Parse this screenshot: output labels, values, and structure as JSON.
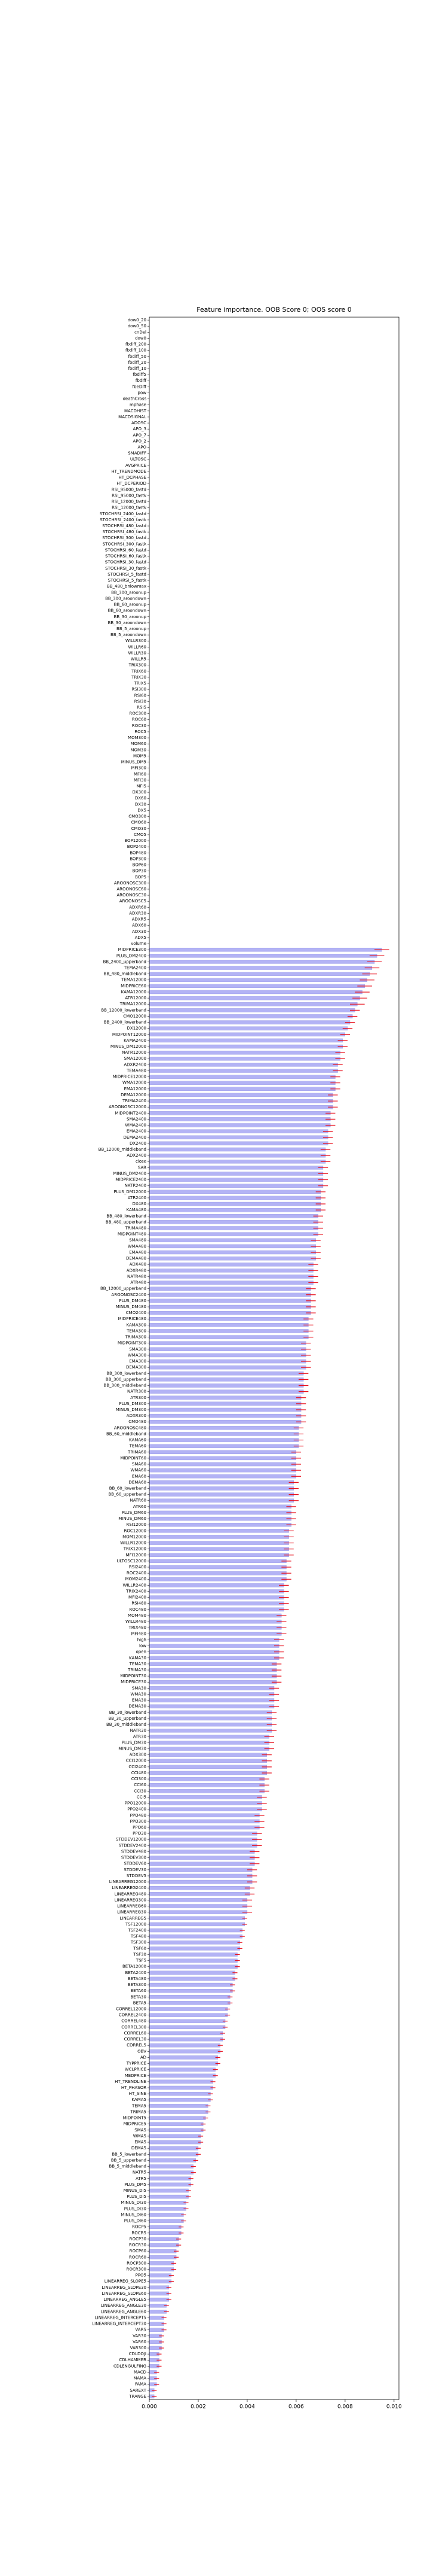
{
  "chart_data": {
    "type": "barh",
    "title": "Feature importance. OOB Score 0; OOS score 0",
    "categories": [
      "dow0_20",
      "dow0_50",
      "cnDel",
      "dow0",
      "fbdiff_200",
      "fbdiff_100",
      "fbdiff_50",
      "fbdiff_20",
      "fbdiff_10",
      "fbdiff5",
      "fbdiff",
      "fbeDiff",
      "pow",
      "deathCross",
      "mphase",
      "MACDHIST",
      "MACDSIGNAL",
      "ADOSC",
      "APO_3",
      "APO_7",
      "APO_2",
      "APO",
      "SMADIFF",
      "ULTOSC",
      "AVGPRICE",
      "HT_TRENDMODE",
      "HT_DCPHASE",
      "HT_DCPERIOD",
      "RSI_95000_fastd",
      "RSI_95000_fastk",
      "RSI_12000_fastd",
      "RSI_12000_fastk",
      "STOCHRSI_2400_fastd",
      "STOCHRSI_2400_fastk",
      "STOCHRSI_480_fastd",
      "STOCHRSI_480_fastk",
      "STOCHRSI_300_fastd",
      "STOCHRSI_300_fastk",
      "STOCHRSI_60_fastd",
      "STOCHRSI_60_fastk",
      "STOCHRSI_30_fastd",
      "STOCHRSI_30_fastk",
      "STOCHRSI_5_fastd",
      "STOCHRSI_5_fastk",
      "BB_480_bnlowmax",
      "BB_300_aroonup",
      "BB_300_aroondown",
      "BB_60_aroonup",
      "BB_60_aroondown",
      "BB_30_aroonup",
      "BB_30_aroondown",
      "BB_5_aroonup",
      "BB_5_aroondown",
      "WILLR300",
      "WILLR60",
      "WILLR30",
      "WILLR5",
      "TRIX300",
      "TRIX60",
      "TRIX30",
      "TRIX5",
      "RSI300",
      "RSI60",
      "RSI30",
      "RSI5",
      "ROC300",
      "ROC60",
      "ROC30",
      "ROC5",
      "MOM300",
      "MOM60",
      "MOM30",
      "MOM5",
      "MINUS_DM5",
      "MFI300",
      "MFI60",
      "MFI30",
      "MFI5",
      "DX300",
      "DX60",
      "DX30",
      "DX5",
      "CMO300",
      "CMO60",
      "CMO30",
      "CMO5",
      "BOP12000",
      "BOP2400",
      "BOP480",
      "BOP300",
      "BOP60",
      "BOP30",
      "BOP5",
      "AROONOSC300",
      "AROONOSC60",
      "AROONOSC30",
      "AROONOSC5",
      "ADXR60",
      "ADXR30",
      "ADXR5",
      "ADX60",
      "ADX30",
      "ADX5",
      "volume",
      "MIDPRICE300",
      "PLUS_DM2400",
      "BB_2400_upperband",
      "TEMA2400",
      "BB_480_middleband",
      "TEMA12000",
      "MIDPRICE60",
      "KAMA12000",
      "ATR12000",
      "TRIMA12000",
      "BB_12000_lowerband",
      "CMO12000",
      "BB_2400_lowerband",
      "DX12000",
      "MIDPOINT12000",
      "KAMA2400",
      "MINUS_DM12000",
      "NATR12000",
      "SMA12000",
      "ADXR2400",
      "TEMA480",
      "MIDPRICE12000",
      "WMA12000",
      "EMA12000",
      "DEMA12000",
      "TRIMA2400",
      "AROONOSC12000",
      "MIDPOINT2400",
      "SMA2400",
      "WMA2400",
      "EMA2400",
      "DEMA2400",
      "DX2400",
      "BB_12000_middleband",
      "ADX2400",
      "close",
      "SAR",
      "MINUS_DM2400",
      "MIDPRICE2400",
      "NATR2400",
      "PLUS_DM12000",
      "ATR2400",
      "DX480",
      "KAMA480",
      "BB_480_lowerband",
      "BB_480_upperband",
      "TRIMA480",
      "MIDPOINT480",
      "SMA480",
      "WMA480",
      "EMA480",
      "DEMA480",
      "ADX480",
      "ADXR480",
      "NATR480",
      "ATR480",
      "BB_12000_upperband",
      "AROONOSC2400",
      "PLUS_DM480",
      "MINUS_DM480",
      "CMO2400",
      "MIDPRICE480",
      "KAMA300",
      "TEMA300",
      "TRIMA300",
      "MIDPOINT300",
      "SMA300",
      "WMA300",
      "EMA300",
      "DEMA300",
      "BB_300_lowerband",
      "BB_300_upperband",
      "BB_300_middleband",
      "NATR300",
      "ATR300",
      "PLUS_DM300",
      "MINUS_DM300",
      "ADXR300",
      "CMO480",
      "AROONOSC480",
      "BB_60_middleband",
      "KAMA60",
      "TEMA60",
      "TRIMA60",
      "MIDPOINT60",
      "SMA60",
      "WMA60",
      "EMA60",
      "DEMA60",
      "BB_60_lowerband",
      "BB_60_upperband",
      "NATR60",
      "ATR60",
      "PLUS_DM60",
      "MINUS_DM60",
      "RSI12000",
      "ROC12000",
      "MOM12000",
      "WILLR12000",
      "TRIX12000",
      "MFI12000",
      "ULTOSC12000",
      "RSI2400",
      "ROC2400",
      "MOM2400",
      "WILLR2400",
      "TRIX2400",
      "MFI2400",
      "RSI480",
      "ROC480",
      "MOM480",
      "WILLR480",
      "TRIX480",
      "MFI480",
      "high",
      "low",
      "open",
      "KAMA30",
      "TEMA30",
      "TRIMA30",
      "MIDPOINT30",
      "MIDPRICE30",
      "SMA30",
      "WMA30",
      "EMA30",
      "DEMA30",
      "BB_30_lowerband",
      "BB_30_upperband",
      "BB_30_middleband",
      "NATR30",
      "ATR30",
      "PLUS_DM30",
      "MINUS_DM30",
      "ADX300",
      "CCI12000",
      "CCI2400",
      "CCI480",
      "CCI300",
      "CCI60",
      "CCI30",
      "CCI5",
      "PPO12000",
      "PPO2400",
      "PPO480",
      "PPO300",
      "PPO60",
      "PPO30",
      "STDDEV12000",
      "STDDEV2400",
      "STDDEV480",
      "STDDEV300",
      "STDDEV60",
      "STDDEV30",
      "STDDEV5",
      "LINEARREG12000",
      "LINEARREG2400",
      "LINEARREG480",
      "LINEARREG300",
      "LINEARREG60",
      "LINEARREG30",
      "LINEARREG5",
      "TSF12000",
      "TSF2400",
      "TSF480",
      "TSF300",
      "TSF60",
      "TSF30",
      "TSF5",
      "BETA12000",
      "BETA2400",
      "BETA480",
      "BETA300",
      "BETA60",
      "BETA30",
      "BETA5",
      "CORREL12000",
      "CORREL2400",
      "CORREL480",
      "CORREL300",
      "CORREL60",
      "CORREL30",
      "CORREL5",
      "OBV",
      "AD",
      "TYPPRICE",
      "WCLPRICE",
      "MEDPRICE",
      "HT_TRENDLINE",
      "HT_PHASOR",
      "HT_SINE",
      "KAMA5",
      "TEMA5",
      "TRIMA5",
      "MIDPOINT5",
      "MIDPRICE5",
      "SMA5",
      "WMA5",
      "EMA5",
      "DEMA5",
      "BB_5_lowerband",
      "BB_5_upperband",
      "BB_5_middleband",
      "NATR5",
      "ATR5",
      "PLUS_DM5",
      "MINUS_DI5",
      "PLUS_DI5",
      "MINUS_DI30",
      "PLUS_DI30",
      "MINUS_DI60",
      "PLUS_DI60",
      "ROCP5",
      "ROCR5",
      "ROCP30",
      "ROCR30",
      "ROCP60",
      "ROCR60",
      "ROCP300",
      "ROCR300",
      "PPO5",
      "LINEARREG_SLOPE5",
      "LINEARREG_SLOPE30",
      "LINEARREG_SLOPE60",
      "LINEARREG_ANGLE5",
      "LINEARREG_ANGLE30",
      "LINEARREG_ANGLE60",
      "LINEARREG_INTERCEPT5",
      "LINEARREG_INTERCEPT30",
      "VAR5",
      "VAR30",
      "VAR60",
      "VAR300",
      "CDLDOJI",
      "CDLHAMMER",
      "CDLENGULFING",
      "MACD",
      "MAMA",
      "FAMA",
      "SAREXT",
      "TRANGE"
    ],
    "values": [
      0,
      0,
      0,
      0,
      0,
      0,
      0,
      0,
      0,
      0,
      0,
      0,
      0,
      0,
      0,
      0,
      0,
      0,
      0,
      0,
      0,
      0,
      0,
      0,
      0,
      0,
      0,
      0,
      0,
      0,
      0,
      0,
      0,
      0,
      0,
      0,
      0,
      0,
      0,
      0,
      0,
      0,
      0,
      0,
      0,
      0,
      0,
      0,
      0,
      0,
      0,
      0,
      0,
      0,
      0,
      0,
      0,
      0,
      0,
      0,
      0,
      0,
      0,
      0,
      0,
      0,
      0,
      0,
      0,
      0,
      0,
      0,
      0,
      0,
      0,
      0,
      0,
      0,
      0,
      0,
      0,
      0,
      0,
      0,
      0,
      0,
      0,
      0,
      0,
      0,
      0,
      0,
      0,
      0,
      0,
      0,
      0,
      0,
      0,
      0,
      0,
      0,
      0,
      0,
      0.0095,
      0.0093,
      0.0092,
      0.0091,
      0.009,
      0.0089,
      0.0088,
      0.0087,
      0.0086,
      0.0085,
      0.0084,
      0.0083,
      0.0082,
      0.0081,
      0.008,
      0.0079,
      0.0079,
      0.0078,
      0.0078,
      0.0077,
      0.0077,
      0.0076,
      0.0076,
      0.0076,
      0.0075,
      0.0075,
      0.0075,
      0.0074,
      0.0074,
      0.0074,
      0.0073,
      0.0073,
      0.0073,
      0.0072,
      0.0072,
      0.0072,
      0.0071,
      0.0071,
      0.0071,
      0.0071,
      0.007,
      0.007,
      0.007,
      0.007,
      0.0069,
      0.0069,
      0.0069,
      0.0069,
      0.0068,
      0.0068,
      0.0068,
      0.0068,
      0.0067,
      0.0067,
      0.0067,
      0.0067,
      0.0066,
      0.0066,
      0.0066,
      0.0066,
      0.0066,
      0.0065,
      0.0065,
      0.0065,
      0.0065,
      0.0064,
      0.0064,
      0.0064,
      0.0064,
      0.0064,
      0.0063,
      0.0063,
      0.0063,
      0.0063,
      0.0062,
      0.0062,
      0.0062,
      0.0062,
      0.0062,
      0.0061,
      0.0061,
      0.0061,
      0.0061,
      0.006,
      0.006,
      0.006,
      0.006,
      0.006,
      0.0059,
      0.0059,
      0.0059,
      0.0059,
      0.0058,
      0.0058,
      0.0058,
      0.0058,
      0.0057,
      0.0057,
      0.0057,
      0.0057,
      0.0057,
      0.0056,
      0.0056,
      0.0056,
      0.0056,
      0.0055,
      0.0055,
      0.0055,
      0.0055,
      0.0055,
      0.0054,
      0.0054,
      0.0054,
      0.0054,
      0.0053,
      0.0053,
      0.0053,
      0.0053,
      0.0052,
      0.0052,
      0.0052,
      0.0052,
      0.0051,
      0.0051,
      0.0051,
      0.0051,
      0.005,
      0.005,
      0.005,
      0.005,
      0.0049,
      0.0049,
      0.0049,
      0.0048,
      0.0048,
      0.0048,
      0.0048,
      0.0047,
      0.0047,
      0.0047,
      0.0046,
      0.0046,
      0.0046,
      0.0045,
      0.0045,
      0.0045,
      0.0044,
      0.0044,
      0.0044,
      0.0043,
      0.0043,
      0.0043,
      0.0042,
      0.0042,
      0.0042,
      0.0041,
      0.0041,
      0.004,
      0.004,
      0.004,
      0.0039,
      0.0039,
      0.0038,
      0.0038,
      0.0037,
      0.0037,
      0.0036,
      0.0036,
      0.0036,
      0.0035,
      0.0035,
      0.0034,
      0.0034,
      0.0033,
      0.0033,
      0.0032,
      0.0032,
      0.0031,
      0.0031,
      0.003,
      0.003,
      0.0029,
      0.0029,
      0.0028,
      0.0028,
      0.0027,
      0.0027,
      0.0026,
      0.0026,
      0.0025,
      0.0025,
      0.0024,
      0.0024,
      0.0023,
      0.0022,
      0.0022,
      0.0021,
      0.0021,
      0.002,
      0.002,
      0.0019,
      0.0018,
      0.0018,
      0.0017,
      0.0017,
      0.0016,
      0.0016,
      0.0015,
      0.0015,
      0.0014,
      0.0014,
      0.0013,
      0.0013,
      0.0012,
      0.0012,
      0.0011,
      0.0011,
      0.001,
      0.001,
      0.0009,
      0.0009,
      0.0008,
      0.0008,
      0.0008,
      0.0007,
      0.0007,
      0.0006,
      0.0006,
      0.0006,
      0.0005,
      0.0005,
      0.0005,
      0.0004,
      0.0004,
      0.0004,
      0.0003,
      0.0003,
      0.0003,
      0.0002,
      0.0002
    ],
    "errors": [
      0,
      0,
      0,
      0,
      0,
      0,
      0,
      0,
      0,
      0,
      0,
      0,
      0,
      0,
      0,
      0,
      0,
      0,
      0,
      0,
      0,
      0,
      0,
      0,
      0,
      0,
      0,
      0,
      0,
      0,
      0,
      0,
      0,
      0,
      0,
      0,
      0,
      0,
      0,
      0,
      0,
      0,
      0,
      0,
      0,
      0,
      0,
      0,
      0,
      0,
      0,
      0,
      0,
      0,
      0,
      0,
      0,
      0,
      0,
      0,
      0,
      0,
      0,
      0,
      0,
      0,
      0,
      0,
      0,
      0,
      0,
      0,
      0,
      0,
      0,
      0,
      0,
      0,
      0,
      0,
      0,
      0,
      0,
      0,
      0,
      0,
      0,
      0,
      0,
      0,
      0,
      0,
      0,
      0,
      0,
      0,
      0,
      0,
      0,
      0,
      0,
      0,
      0,
      0,
      0.0003,
      0.0003,
      0.0003,
      0.0003,
      0.0003,
      0.0003,
      0.0003,
      0.0003,
      0.0003,
      0.0003,
      0.0002,
      0.0002,
      0.0002,
      0.0002,
      0.0002,
      0.0002,
      0.0002,
      0.0002,
      0.0002,
      0.0002,
      0.0002,
      0.0002,
      0.0002,
      0.0002,
      0.0002,
      0.0002,
      0.0002,
      0.0002,
      0.0002,
      0.0002,
      0.0002,
      0.0002,
      0.0002,
      0.0002,
      0.0002,
      0.0002,
      0.0002,
      0.0002,
      0.0002,
      0.0002,
      0.0002,
      0.0002,
      0.0002,
      0.0002,
      0.0002,
      0.0002,
      0.0002,
      0.0002,
      0.0002,
      0.0002,
      0.0002,
      0.0002,
      0.0002,
      0.0002,
      0.0002,
      0.0002,
      0.0002,
      0.0002,
      0.0002,
      0.0002,
      0.0002,
      0.0002,
      0.0002,
      0.0002,
      0.0002,
      0.0002,
      0.0002,
      0.0002,
      0.0002,
      0.0002,
      0.0002,
      0.0002,
      0.0002,
      0.0002,
      0.0002,
      0.0002,
      0.0002,
      0.0002,
      0.0002,
      0.0002,
      0.0002,
      0.0002,
      0.0002,
      0.0002,
      0.0002,
      0.0002,
      0.0002,
      0.0002,
      0.0002,
      0.0002,
      0.0002,
      0.0002,
      0.0002,
      0.0002,
      0.0002,
      0.0002,
      0.0002,
      0.0002,
      0.0002,
      0.0002,
      0.0002,
      0.0002,
      0.0002,
      0.0002,
      0.0002,
      0.0002,
      0.0002,
      0.0002,
      0.0002,
      0.0002,
      0.0002,
      0.0002,
      0.0002,
      0.0002,
      0.0002,
      0.0002,
      0.0002,
      0.0002,
      0.0002,
      0.0002,
      0.0002,
      0.0002,
      0.0002,
      0.0002,
      0.0002,
      0.0002,
      0.0002,
      0.0002,
      0.0002,
      0.0002,
      0.0002,
      0.0002,
      0.0002,
      0.0002,
      0.0002,
      0.0002,
      0.0002,
      0.0002,
      0.0002,
      0.0002,
      0.0002,
      0.0002,
      0.0002,
      0.0002,
      0.0002,
      0.0002,
      0.0002,
      0.0002,
      0.0002,
      0.0002,
      0.0002,
      0.0002,
      0.0002,
      0.0002,
      0.0002,
      0.0002,
      0.0002,
      0.0002,
      0.0002,
      0.0002,
      0.0001,
      0.0001,
      0.0001,
      0.0001,
      0.0001,
      0.0001,
      0.0001,
      0.0001,
      0.0001,
      0.0001,
      0.0001,
      0.0001,
      0.0001,
      0.0001,
      0.0001,
      0.0001,
      0.0001,
      0.0001,
      0.0001,
      0.0001,
      0.0001,
      0.0001,
      0.0001,
      0.0001,
      0.0001,
      0.0001,
      0.0001,
      0.0001,
      0.0001,
      0.0001,
      0.0001,
      0.0001,
      0.0001,
      0.0001,
      0.0001,
      0.0001,
      0.0001,
      0.0001,
      0.0001,
      0.0001,
      0.0001,
      0.0001,
      0.0001,
      0.0001,
      0.0001,
      0.0001,
      0.0001,
      0.0001,
      0.0001,
      0.0001,
      0.0001,
      0.0001,
      0.0001,
      0.0001,
      0.0001,
      0.0001,
      0.0001,
      0.0001,
      0.0001,
      0.0001,
      0.0001,
      0.0001,
      0.0001,
      0.0001,
      0.0001,
      0.0001,
      0.0001,
      0.0001,
      0.0001,
      0.0001,
      0.0001,
      0.0001,
      0.0001,
      0.0001,
      0.0001,
      0.0001,
      0.0001,
      0.0001,
      0.0001,
      0.0001
    ],
    "color": "#b3b3f5",
    "edgecolor": "#8080e0",
    "error_color": "#e8101c",
    "xlim": [
      0,
      0.0102
    ],
    "xticks": [
      {
        "value": 0,
        "label": "0.000"
      },
      {
        "value": 0.002,
        "label": "0.002"
      },
      {
        "value": 0.004,
        "label": "0.004"
      },
      {
        "value": 0.006,
        "label": "0.006"
      },
      {
        "value": 0.008,
        "label": "0.008"
      },
      {
        "value": 0.01,
        "label": "0.010"
      }
    ]
  }
}
